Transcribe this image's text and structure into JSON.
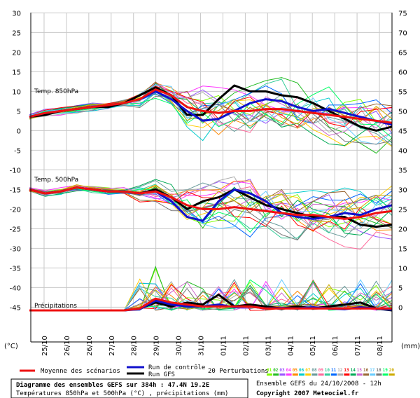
{
  "chart_data": {
    "type": "line",
    "title": "Diagramme des ensembles GEFS sur 384h : 47.4N 19.2E",
    "subtitle": "Températures 850hPa et 500hPa (°C) , précipitations (mm)",
    "run_label": "Ensemble GEFS du 24/10/2008 - 12h",
    "copyright": "Copyright 2007 Meteociel.fr",
    "left_unit": "(°C)",
    "right_unit": "(mm)",
    "left_axis_ticks": [
      30,
      25,
      20,
      15,
      10,
      5,
      0,
      -5,
      -10,
      -15,
      -20,
      -25,
      -30,
      -35,
      -40,
      -45
    ],
    "right_axis_ticks": [
      75,
      70,
      65,
      60,
      55,
      50,
      45,
      40,
      35,
      30,
      25,
      20,
      15,
      10,
      5,
      0
    ],
    "x_labels": [
      "25/10",
      "26/10",
      "26/10",
      "27/10",
      "28/10",
      "29/10",
      "30/10",
      "31/10",
      "01/11",
      "02/11",
      "03/11",
      "04/11",
      "05/11",
      "06/11",
      "07/11",
      "08/11"
    ],
    "panel_labels": [
      "Temp. 850hPa",
      "Temp. 500hPa",
      "Précipitations"
    ],
    "legend": {
      "mean": "Moyenne des scénarios",
      "control": "Run de contrôle",
      "gfs": "Run GFS",
      "perturbations": "20 Perturbations",
      "perturbation_ids": [
        "01",
        "02",
        "03",
        "04",
        "05",
        "06",
        "07",
        "08",
        "09",
        "10",
        "11",
        "12",
        "13",
        "14",
        "15",
        "16",
        "17",
        "18",
        "19",
        "20"
      ]
    },
    "colors": {
      "mean": "#ee1111",
      "control": "#1111cc",
      "gfs": "#000000",
      "grid": "#c8c8c8",
      "perturbations": [
        "#7fff00",
        "#22bb22",
        "#9955ff",
        "#ff33ff",
        "#ff8800",
        "#00cccc",
        "#ffcc00",
        "#669999",
        "#ff6699",
        "#33cc99",
        "#0066ff",
        "#aaaaaa",
        "#ff0000",
        "#00aa55",
        "#cc66cc",
        "#996633",
        "#66ccff",
        "#777777",
        "#00ff66",
        "#ccaa00"
      ]
    },
    "series": [
      {
        "name": "Moyenne des scénarios",
        "panel": "850hPa",
        "values": [
          3.5,
          4.5,
          5,
          5.5,
          6,
          6.5,
          7,
          8,
          10.5,
          9,
          6,
          5,
          4.5,
          5,
          5,
          5.5,
          5.5,
          5,
          4.5,
          4,
          3.5,
          3,
          2.5,
          2
        ]
      },
      {
        "name": "Run de contrôle",
        "panel": "850hPa",
        "values": [
          3.5,
          4.5,
          5,
          5.5,
          6,
          6.5,
          7,
          8,
          10,
          8,
          5,
          2.5,
          3,
          5,
          7,
          8,
          7.5,
          6,
          5,
          5.5,
          4.5,
          3.5,
          2.5,
          1.5
        ]
      },
      {
        "name": "Run GFS",
        "panel": "850hPa",
        "values": [
          3.5,
          4,
          5,
          5.5,
          6,
          6,
          7,
          9,
          11,
          9,
          4,
          4,
          8,
          11.5,
          10,
          10,
          9,
          8.5,
          7,
          5,
          3,
          1,
          0,
          1
        ]
      },
      {
        "name": "Moyenne des scénarios",
        "panel": "500hPa",
        "values": [
          -15,
          -16,
          -15.5,
          -14.5,
          -15,
          -15.5,
          -15.5,
          -16,
          -15.5,
          -17,
          -19,
          -20,
          -20,
          -19.5,
          -20,
          -20.5,
          -21,
          -21.5,
          -21.5,
          -22,
          -22.5,
          -22,
          -21,
          -20.5
        ]
      },
      {
        "name": "Run de contrôle",
        "panel": "500hPa",
        "values": [
          -15,
          -16,
          -15.5,
          -14.5,
          -15,
          -15.5,
          -15.5,
          -16,
          -15.5,
          -18,
          -22,
          -23,
          -18,
          -15,
          -16,
          -18,
          -21,
          -22,
          -22.5,
          -22,
          -21,
          -21.5,
          -20,
          -19
        ]
      },
      {
        "name": "Run GFS",
        "panel": "500hPa",
        "values": [
          -15,
          -16,
          -15.5,
          -14.5,
          -15,
          -15.5,
          -15.5,
          -16,
          -15,
          -17,
          -20,
          -18,
          -17,
          -15,
          -17,
          -19,
          -20,
          -21,
          -22,
          -22,
          -22,
          -24,
          -24.5,
          -24
        ]
      },
      {
        "name": "Moyenne des scénarios",
        "panel": "precip",
        "unit": "mm",
        "values": [
          0,
          0,
          0,
          0,
          0,
          0,
          0,
          0.5,
          3,
          2,
          1.5,
          1,
          1,
          1,
          1,
          0.5,
          0.5,
          0.5,
          0.5,
          0.5,
          0.5,
          0.5,
          0.5,
          0.5
        ]
      },
      {
        "name": "Run de contrôle",
        "panel": "precip",
        "unit": "mm",
        "values": [
          0,
          0,
          0,
          0,
          0,
          0,
          0,
          0.3,
          2.5,
          1.5,
          1,
          1,
          1.5,
          0.8,
          1,
          0.5,
          0.6,
          0.5,
          0.8,
          0.5,
          0.3,
          0.8,
          0.5,
          0.2
        ]
      },
      {
        "name": "Run GFS",
        "panel": "precip",
        "unit": "mm",
        "values": [
          0,
          0,
          0,
          0,
          0,
          0,
          0,
          0.5,
          2,
          1,
          2,
          1.5,
          4,
          1,
          1.5,
          1,
          0.5,
          1,
          0.5,
          1,
          1.5,
          2,
          0.5,
          0
        ]
      }
    ]
  }
}
